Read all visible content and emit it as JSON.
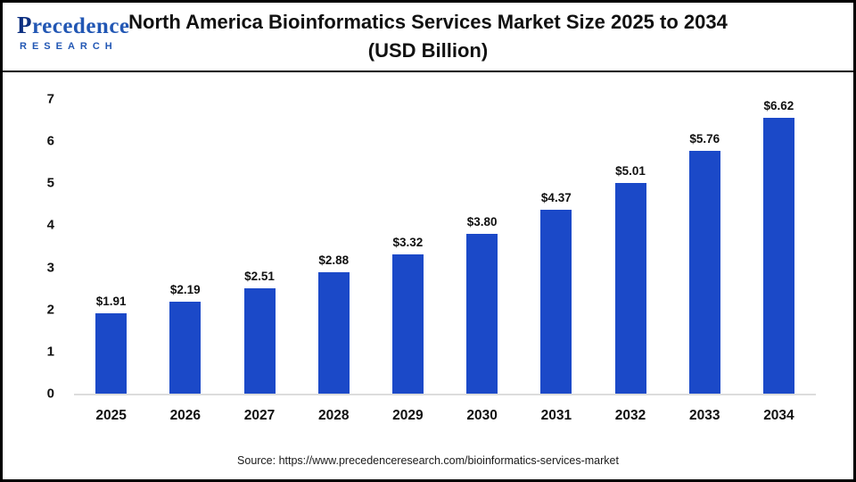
{
  "header": {
    "logo": {
      "initial": "P",
      "rest": "recedence",
      "subtext": "RESEARCH"
    },
    "title_line1": "North America Bioinformatics Services Market Size 2025 to 2034",
    "title_line2": "(USD Billion)"
  },
  "footer": {
    "source": "Source: https://www.precedenceresearch.com/bioinformatics-services-market"
  },
  "colors": {
    "bar": "#1b49c8",
    "logo_dark": "#0c2f80",
    "logo_blue": "#2257b4"
  },
  "chart_data": {
    "type": "bar",
    "title": "North America Bioinformatics Services Market Size 2025 to 2034 (USD Billion)",
    "categories": [
      "2025",
      "2026",
      "2027",
      "2028",
      "2029",
      "2030",
      "2031",
      "2032",
      "2033",
      "2034"
    ],
    "values": [
      1.91,
      2.19,
      2.51,
      2.88,
      3.32,
      3.8,
      4.37,
      5.01,
      5.76,
      6.62
    ],
    "value_labels": [
      "$1.91",
      "$2.19",
      "$2.51",
      "$2.88",
      "$3.32",
      "$3.80",
      "$4.37",
      "$5.01",
      "$5.76",
      "$6.62"
    ],
    "xlabel": "",
    "ylabel": "",
    "ylim": [
      0,
      7
    ],
    "yticks": [
      0,
      1,
      2,
      3,
      4,
      5,
      6,
      7
    ],
    "grid": false,
    "legend": false,
    "legend_position": "none"
  }
}
